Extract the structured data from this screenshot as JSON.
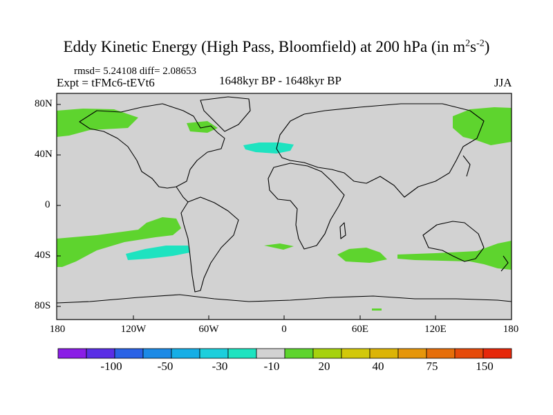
{
  "title": {
    "text": "Eddy Kinetic Energy (High Pass, Bloomfield) at 200 hPa (in m",
    "sup1": "2",
    "mid": "s",
    "sup2": "-2",
    "close": ")"
  },
  "stats": "rmsd= 5.24108 diff= 2.08653",
  "expt": "Expt = tFMc6-tEVt6",
  "period": "1648kyr BP - 1648kyr BP",
  "season": "JJA",
  "lat_labels": [
    "80N",
    "40N",
    "0",
    "40S",
    "80S"
  ],
  "lon_labels": [
    "180",
    "120W",
    "60W",
    "0",
    "60E",
    "120E",
    "180"
  ],
  "colorbar": {
    "colors": [
      "#8a1de6",
      "#5a2ee6",
      "#2a62e6",
      "#1c8ae6",
      "#16aee6",
      "#1ccfdc",
      "#1ee3c0",
      "#d2d2d2",
      "#5ed42e",
      "#a6d20e",
      "#d2c80a",
      "#dcb406",
      "#e6960a",
      "#e66e0a",
      "#e64a0a",
      "#e6280a"
    ],
    "labels": [
      "-100",
      "-50",
      "-30",
      "-10",
      "20",
      "40",
      "75",
      "150"
    ]
  },
  "colors": {
    "ocean": "#d2d2d2",
    "positive": "#5ed42e",
    "negative": "#1ee3c0",
    "coast": "#000000"
  }
}
